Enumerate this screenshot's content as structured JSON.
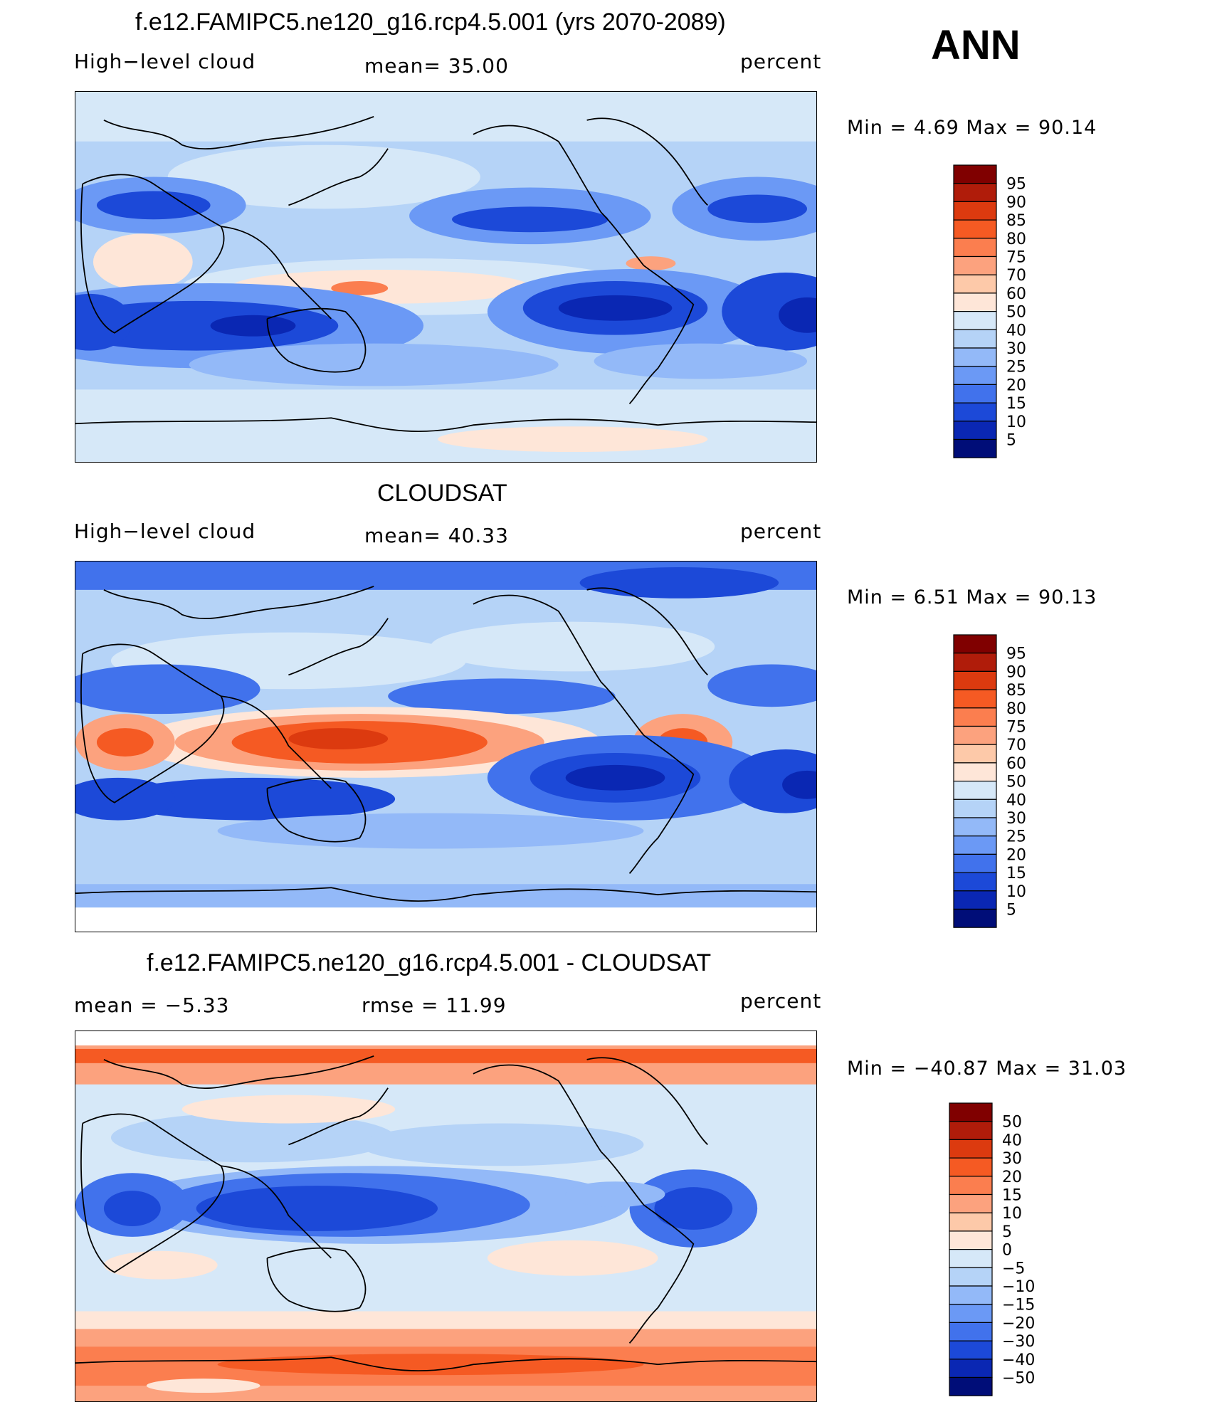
{
  "season": "ANN",
  "panels": [
    {
      "title": "f.e12.FAMIPC5.ne120_g16.rcp4.5.001 (yrs 2070-2089)",
      "left_label": "High−level cloud",
      "center_label": "mean=   35.00",
      "units": "percent",
      "minmax": "Min  =    4.69  Max  =   90.14"
    },
    {
      "title": "CLOUDSAT",
      "left_label": "High−level cloud",
      "center_label": "mean=   40.33",
      "units": "percent",
      "minmax": "Min  =    6.51  Max  =   90.13"
    },
    {
      "title": "f.e12.FAMIPC5.ne120_g16.rcp4.5.001 - CLOUDSAT",
      "left_label": "mean  =    −5.33",
      "center_label": "rmse  =    11.99",
      "units": "percent",
      "minmax": "Min  = −40.87  Max  =   31.03"
    }
  ],
  "colorbars": {
    "abs": {
      "labels": [
        "95",
        "90",
        "85",
        "80",
        "75",
        "70",
        "60",
        "50",
        "40",
        "30",
        "25",
        "20",
        "15",
        "10",
        "5"
      ],
      "colors": [
        "#800000",
        "#b01c0a",
        "#dc3a0f",
        "#f55a23",
        "#fb7e4f",
        "#fca27e",
        "#fdc9a9",
        "#fee6d8",
        "#d6e8f8",
        "#b5d3f7",
        "#93b9f8",
        "#6b99f5",
        "#4172ec",
        "#1c49d8",
        "#0a27b3",
        "#000d78"
      ]
    },
    "diff": {
      "labels": [
        "50",
        "40",
        "30",
        "20",
        "15",
        "10",
        "5",
        "0",
        "−5",
        "−10",
        "−15",
        "−20",
        "−30",
        "−40",
        "−50"
      ],
      "colors": [
        "#800000",
        "#b01c0a",
        "#dc3a0f",
        "#f55a23",
        "#fb7e4f",
        "#fca27e",
        "#fdc9a9",
        "#fee6d8",
        "#d6e8f8",
        "#b5d3f7",
        "#93b9f8",
        "#6b99f5",
        "#4172ec",
        "#1c49d8",
        "#0a27b3",
        "#000d78"
      ]
    }
  }
}
